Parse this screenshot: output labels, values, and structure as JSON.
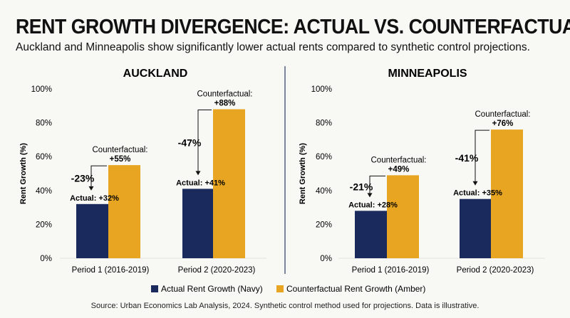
{
  "header": {
    "title": "RENT GROWTH DIVERGENCE: ACTUAL VS. COUNTERFACTUAL",
    "subtitle": "Auckland and Minneapolis show significantly lower actual rents compared to synthetic control projections."
  },
  "chart_data": [
    {
      "type": "bar",
      "title": "AUCKLAND",
      "ylabel": "Rent Growth (%)",
      "ylim": [
        0,
        100
      ],
      "yticks": [
        "0%",
        "20%",
        "40%",
        "60%",
        "80%",
        "100%"
      ],
      "categories": [
        "Period 1 (2016-2019)",
        "Period 2 (2020-2023)"
      ],
      "series": [
        {
          "name": "Actual Rent Growth (Navy)",
          "values": [
            32,
            41
          ],
          "labels": [
            "Actual: +32%",
            "Actual: +41%"
          ]
        },
        {
          "name": "Counterfactual Rent Growth (Amber)",
          "values": [
            55,
            88
          ],
          "labels": [
            "+55%",
            "+88%"
          ],
          "label_prefix": "Counterfactual:"
        }
      ],
      "gaps": [
        "-23%",
        "-47%"
      ]
    },
    {
      "type": "bar",
      "title": "MINNEAPOLIS",
      "ylabel": "Rent Growth (%)",
      "ylim": [
        0,
        100
      ],
      "yticks": [
        "0%",
        "20%",
        "40%",
        "60%",
        "80%",
        "100%"
      ],
      "categories": [
        "Period 1 (2016-2019)",
        "Period 2 (2020-2023)"
      ],
      "series": [
        {
          "name": "Actual Rent Growth (Navy)",
          "values": [
            28,
            35
          ],
          "labels": [
            "Actual: +28%",
            "Actual: +35%"
          ]
        },
        {
          "name": "Counterfactual Rent Growth (Amber)",
          "values": [
            49,
            76
          ],
          "labels": [
            "+49%",
            "+76%"
          ],
          "label_prefix": "Counterfactual:"
        }
      ],
      "gaps": [
        "-21%",
        "-41%"
      ]
    }
  ],
  "legend": {
    "actual": "Actual Rent Growth (Navy)",
    "counterfactual": "Counterfactual Rent Growth (Amber)"
  },
  "colors": {
    "actual": "#1b2a5c",
    "counterfactual": "#e8a521",
    "divider": "#2b3a66"
  },
  "footer": {
    "source": "Source: Urban Economics Lab Analysis, 2024. Synthetic control method used for projections. Data is illustrative."
  }
}
